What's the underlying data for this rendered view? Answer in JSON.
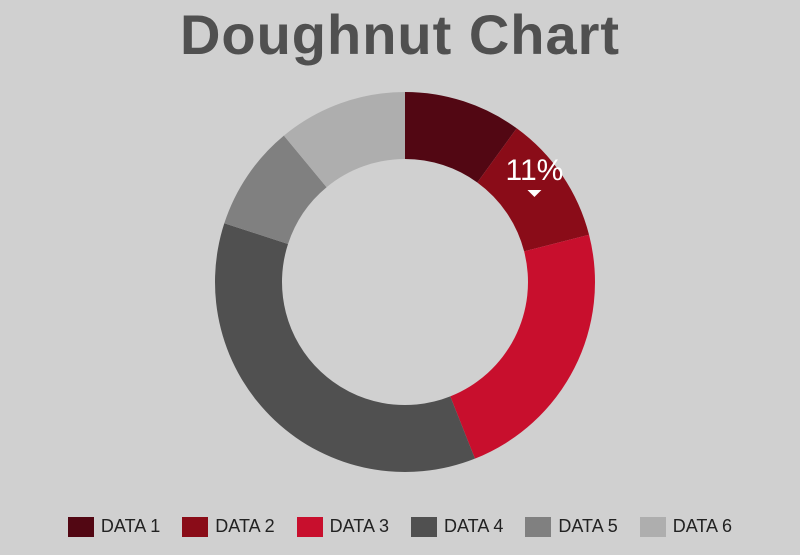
{
  "chart_data": {
    "type": "pie",
    "variant": "doughnut",
    "title": "Doughnut Chart",
    "categories": [
      "DATA 1",
      "DATA 2",
      "DATA 3",
      "DATA 4",
      "DATA 5",
      "DATA 6"
    ],
    "values": [
      10,
      11,
      23,
      36,
      9,
      11
    ],
    "colors": [
      "#520713",
      "#8a0c18",
      "#c80f2d",
      "#505050",
      "#808080",
      "#aeaeae"
    ],
    "highlight": {
      "index": 1,
      "label": "11%"
    },
    "legend": "bottom"
  }
}
